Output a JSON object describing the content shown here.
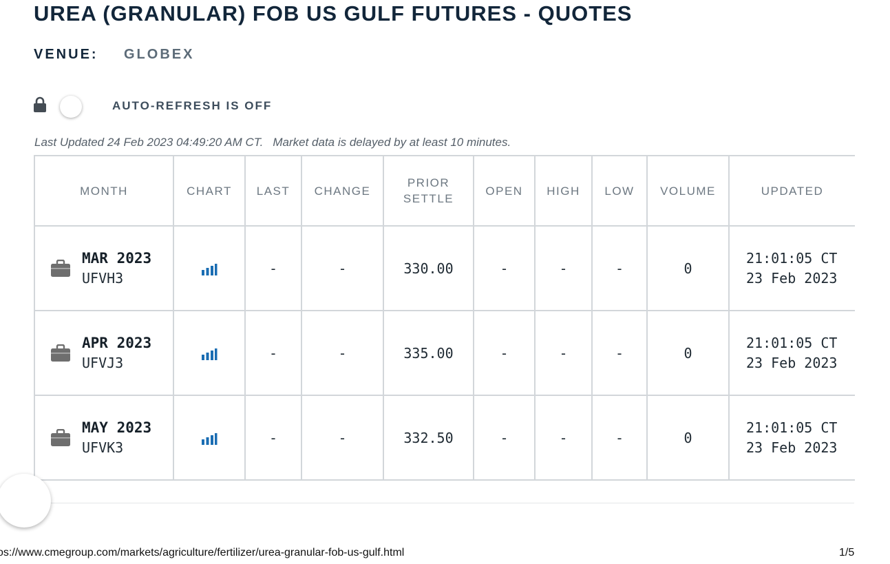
{
  "page": {
    "title": "UREA (GRANULAR) FOB US GULF FUTURES - QUOTES",
    "venue_label": "VENUE:",
    "venue_value": "GLOBEX",
    "auto_refresh_label": "AUTO-REFRESH IS OFF",
    "auto_refresh_on": false,
    "last_updated": "Last Updated 24 Feb 2023 04:49:20 AM CT.",
    "delay_notice": "Market data is delayed by at least 10 minutes."
  },
  "table": {
    "headers": {
      "month": "MONTH",
      "chart": "CHART",
      "last": "LAST",
      "change": "CHANGE",
      "prior_settle_1": "PRIOR",
      "prior_settle_2": "SETTLE",
      "open": "OPEN",
      "high": "HIGH",
      "low": "LOW",
      "volume": "VOLUME",
      "updated": "UPDATED"
    },
    "rows": [
      {
        "month": "MAR 2023",
        "code": "UFVH3",
        "last": "-",
        "change": "-",
        "prior_settle": "330.00",
        "open": "-",
        "high": "-",
        "low": "-",
        "volume": "0",
        "updated_time": "21:01:05 CT",
        "updated_date": "23 Feb 2023"
      },
      {
        "month": "APR 2023",
        "code": "UFVJ3",
        "last": "-",
        "change": "-",
        "prior_settle": "335.00",
        "open": "-",
        "high": "-",
        "low": "-",
        "volume": "0",
        "updated_time": "21:01:05 CT",
        "updated_date": "23 Feb 2023"
      },
      {
        "month": "MAY 2023",
        "code": "UFVK3",
        "last": "-",
        "change": "-",
        "prior_settle": "332.50",
        "open": "-",
        "high": "-",
        "low": "-",
        "volume": "0",
        "updated_time": "21:01:05 CT",
        "updated_date": "23 Feb 2023"
      }
    ]
  },
  "footer": {
    "url": "os://www.cmegroup.com/markets/agriculture/fertilizer/urea-granular-fob-us-gulf.html",
    "page_indicator": "1/5"
  },
  "icons": {
    "lock": "lock-icon",
    "row_icon": "briefcase-icon",
    "chart": "bar-chart-icon"
  },
  "colors": {
    "title": "#12263a",
    "chart_icon": "#1a6db3",
    "briefcase_icon": "#6e6e6e",
    "table_border": "#d2d6da"
  }
}
